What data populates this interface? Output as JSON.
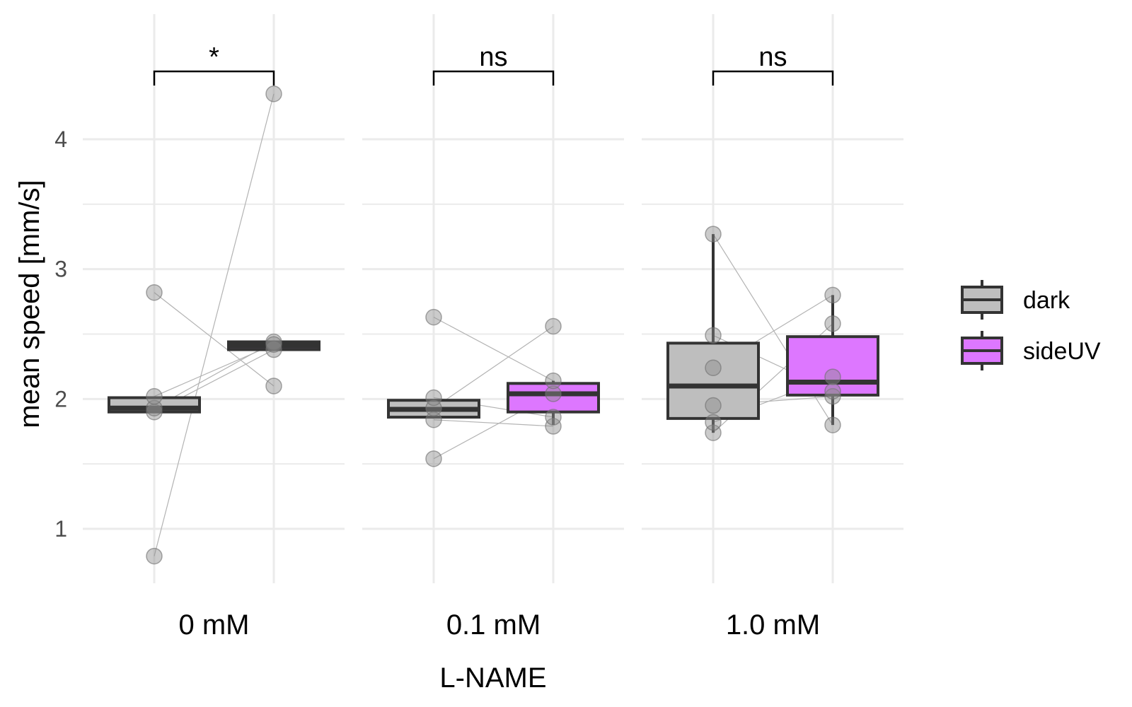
{
  "chart_data": {
    "type": "box",
    "title": "",
    "xlabel": "L-NAME",
    "ylabel": "mean speed [mm/s]",
    "ylim": [
      0.6,
      4.5
    ],
    "yticks": [
      "1",
      "2",
      "3",
      "4"
    ],
    "grid": true,
    "legend_position": "right",
    "facets": [
      "0 mM",
      "0.1 mM",
      "1.0 mM"
    ],
    "series": [
      {
        "name": "dark",
        "color": "#bebebe"
      },
      {
        "name": "sideUV",
        "color": "#dd77ff"
      }
    ],
    "panels": [
      {
        "facet": "0 mM",
        "significance": "*",
        "boxes": [
          {
            "series": "dark",
            "q1": 1.9,
            "median": 1.93,
            "q3": 2.01,
            "whisker_low": 1.9,
            "whisker_high": 2.02
          },
          {
            "series": "sideUV",
            "q1": 2.38,
            "median": 2.41,
            "q3": 2.44,
            "whisker_low": 2.38,
            "whisker_high": 2.44
          }
        ],
        "points": {
          "dark": [
            0.79,
            1.9,
            1.93,
            2.02,
            2.82
          ],
          "sideUV": [
            4.35,
            2.38,
            2.44,
            2.42,
            2.1
          ]
        }
      },
      {
        "facet": "0.1 mM",
        "significance": "ns",
        "boxes": [
          {
            "series": "dark",
            "q1": 1.86,
            "median": 1.92,
            "q3": 1.99,
            "whisker_low": 1.86,
            "whisker_high": 1.99
          },
          {
            "series": "sideUV",
            "q1": 1.9,
            "median": 2.04,
            "q3": 2.12,
            "whisker_low": 1.8,
            "whisker_high": 2.14
          }
        ],
        "points": {
          "dark": [
            1.54,
            1.84,
            1.93,
            2.01,
            2.63
          ],
          "sideUV": [
            2.04,
            1.79,
            2.56,
            1.86,
            2.14
          ]
        }
      },
      {
        "facet": "1.0 mM",
        "significance": "ns",
        "boxes": [
          {
            "series": "dark",
            "q1": 1.85,
            "median": 2.1,
            "q3": 2.43,
            "whisker_low": 1.74,
            "whisker_high": 3.27
          },
          {
            "series": "sideUV",
            "q1": 2.03,
            "median": 2.13,
            "q3": 2.48,
            "whisker_low": 1.8,
            "whisker_high": 2.8
          }
        ],
        "points": {
          "dark": [
            1.74,
            1.82,
            1.95,
            2.24,
            2.49,
            3.27
          ],
          "sideUV": [
            2.58,
            2.17,
            2.02,
            2.8,
            2.06,
            1.8
          ]
        }
      }
    ]
  }
}
